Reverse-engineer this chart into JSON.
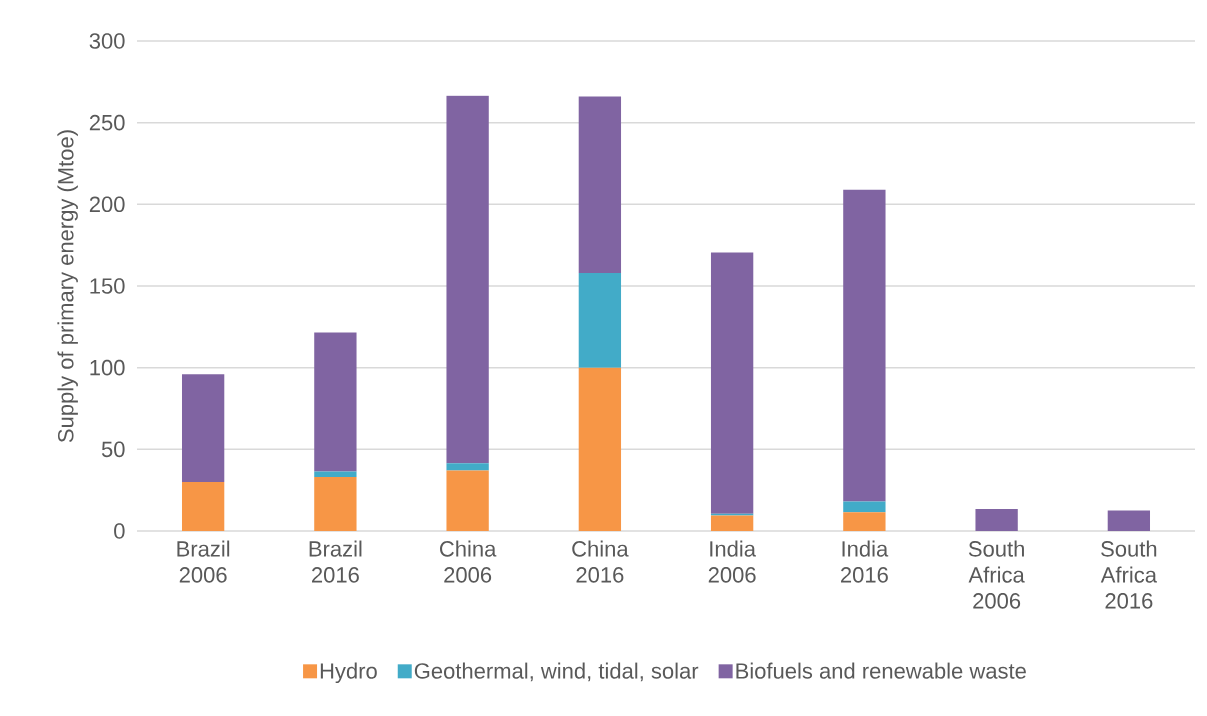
{
  "chart_data": {
    "type": "bar",
    "stacked": true,
    "categories": [
      "Brazil 2006",
      "Brazil 2016",
      "China 2006",
      "China 2016",
      "India 2006",
      "India 2016",
      "South Africa 2006",
      "South Africa 2016"
    ],
    "series": [
      {
        "name": "Hydro",
        "color": "#f79646",
        "values": [
          30,
          33,
          37,
          100,
          9.5,
          11.5,
          0,
          0
        ]
      },
      {
        "name": "Geothermal, wind, tidal, solar",
        "color": "#42abc8",
        "values": [
          0,
          3.5,
          4.5,
          58,
          1,
          6.5,
          0,
          0
        ]
      },
      {
        "name": "Biofuels and renewable waste",
        "color": "#8064a2",
        "values": [
          66,
          85,
          225,
          108,
          160,
          191,
          13.5,
          12.5
        ]
      }
    ],
    "ylabel": "Supply of primary energy (Mtoe)",
    "ylim": [
      0,
      300
    ],
    "yticks": [
      0,
      50,
      100,
      150,
      200,
      250,
      300
    ],
    "grid": "y",
    "legend": "bottom"
  }
}
